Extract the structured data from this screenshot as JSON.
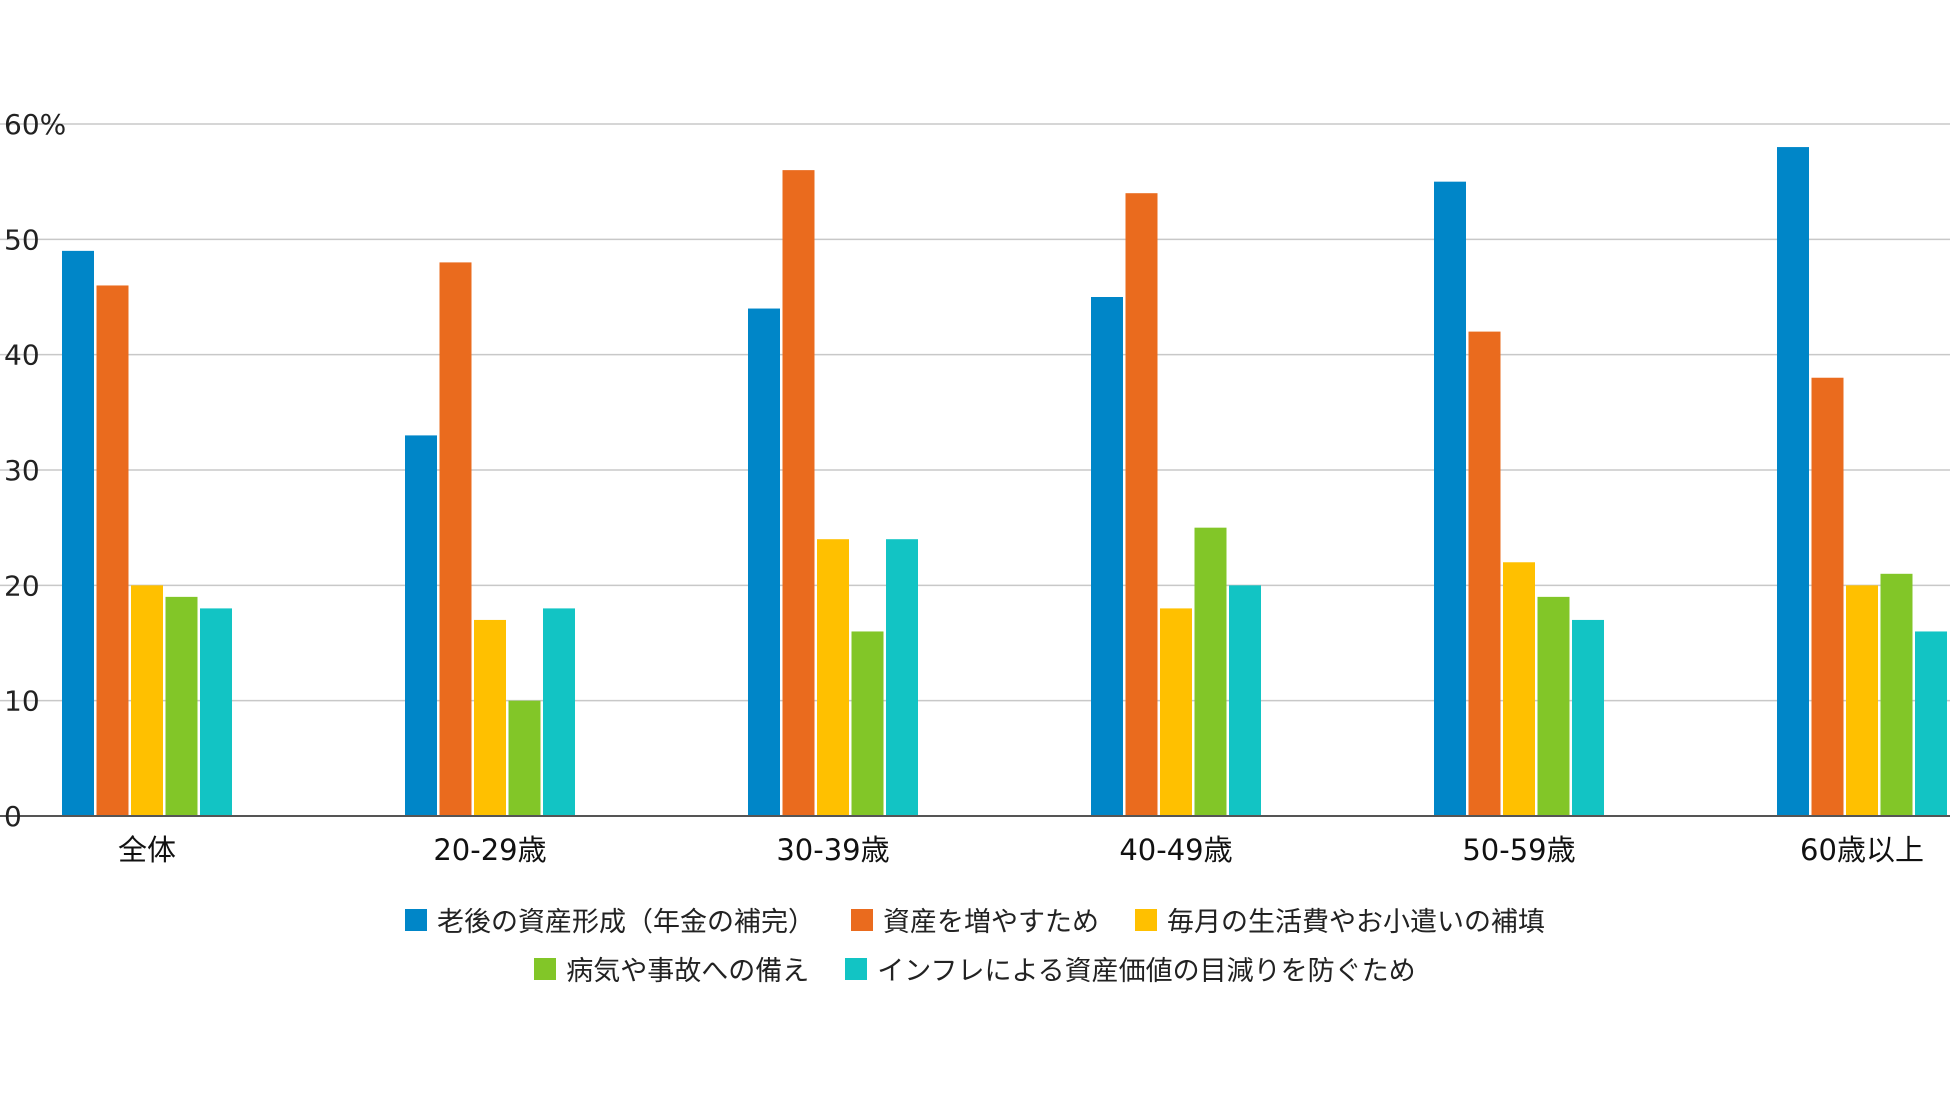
{
  "chart_data": {
    "type": "bar",
    "categories": [
      "全体",
      "20-29歳",
      "30-39歳",
      "40-49歳",
      "50-59歳",
      "60歳以上"
    ],
    "series": [
      {
        "name": "老後の資産形成（年金の補完）",
        "color": "#0086C8",
        "values": [
          49,
          33,
          44,
          45,
          55,
          58
        ]
      },
      {
        "name": "資産を増やすため",
        "color": "#EA6B1E",
        "values": [
          46,
          48,
          56,
          54,
          42,
          38
        ]
      },
      {
        "name": "毎月の生活費やお小遣いの補填",
        "color": "#FFC000",
        "values": [
          20,
          17,
          24,
          18,
          22,
          20
        ]
      },
      {
        "name": "病気や事故への備え",
        "color": "#82C628",
        "values": [
          19,
          10,
          16,
          25,
          19,
          21
        ]
      },
      {
        "name": "インフレによる資産価値の目減りを防ぐため",
        "color": "#12C4C4",
        "values": [
          18,
          18,
          24,
          20,
          17,
          16
        ]
      }
    ],
    "y_ticks": [
      "0",
      "10",
      "20",
      "30",
      "40",
      "50",
      "60%"
    ],
    "ylim": [
      0,
      60
    ],
    "grid": true,
    "legend_position": "bottom"
  },
  "legend_rows": [
    [
      0,
      1,
      2
    ],
    [
      3,
      4
    ]
  ]
}
